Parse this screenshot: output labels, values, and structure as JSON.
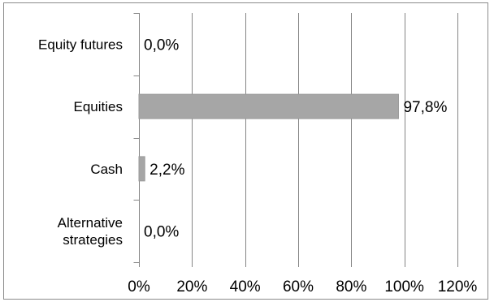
{
  "chart_data": {
    "type": "bar",
    "orientation": "horizontal",
    "categories": [
      "Equity futures",
      "Equities",
      "Cash",
      "Alternative strategies"
    ],
    "category_label_lines": [
      [
        "Equity futures"
      ],
      [
        "Equities"
      ],
      [
        "Cash"
      ],
      [
        "Alternative",
        "strategies"
      ]
    ],
    "values": [
      0.0,
      97.8,
      2.2,
      0.0
    ],
    "data_labels": [
      "0,0%",
      "97,8%",
      "2,2%",
      "0,0%"
    ],
    "xlim": [
      0,
      120
    ],
    "x_ticks": [
      0,
      20,
      40,
      60,
      80,
      100,
      120
    ],
    "x_tick_labels": [
      "0%",
      "20%",
      "40%",
      "60%",
      "80%",
      "100%",
      "120%"
    ],
    "title": "",
    "xlabel": "",
    "ylabel": "",
    "grid": "vertical",
    "legend": "none",
    "colors": {
      "bar": "#a6a6a6",
      "bar_border": "#9a9a9a",
      "gridline": "#858585",
      "frame": "#8c8c8c",
      "text": "#000000"
    }
  }
}
